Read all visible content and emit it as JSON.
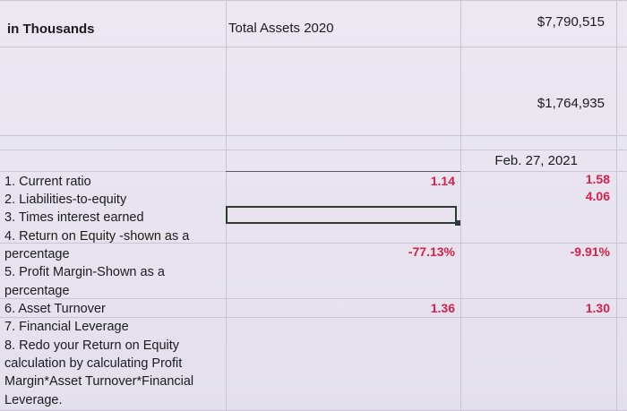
{
  "header": {
    "units_label": "in Thousands",
    "total_assets_label": "Total Assets 2020",
    "total_assets_value": "$7,790,515"
  },
  "figures": {
    "second_value": "$1,764,935",
    "date_label": "Feb. 27, 2021"
  },
  "questions": [
    "1. Current ratio",
    "2. Liabilities-to-equity",
    "3. Times interest earned",
    "4. Return on Equity -shown as a",
    "percentage",
    "5. Profit Margin-Shown as a",
    "percentage",
    "6. Asset Turnover",
    "7. Financial Leverage",
    "8. Redo your Return on Equity",
    "calculation by calculating Profit",
    "Margin*Asset Turnover*Financial",
    "Leverage."
  ],
  "column_2020": {
    "current_ratio": "1.14",
    "return_on_equity": "-77.13%",
    "asset_turnover": "1.36"
  },
  "column_2021": {
    "current_ratio": "1.58",
    "liabilities_to_equity": "4.06",
    "return_on_equity": "-9.91%",
    "asset_turnover": "1.30"
  },
  "colors": {
    "accent_red": "#d4224a",
    "grid": "#c9c3d3",
    "background": "#e6e1ee"
  }
}
